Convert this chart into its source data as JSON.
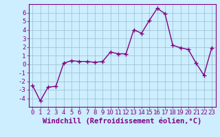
{
  "x": [
    0,
    1,
    2,
    3,
    4,
    5,
    6,
    7,
    8,
    9,
    10,
    11,
    12,
    13,
    14,
    15,
    16,
    17,
    18,
    19,
    20,
    21,
    22,
    23
  ],
  "y": [
    -2.5,
    -4.3,
    -2.7,
    -2.6,
    0.1,
    0.4,
    0.3,
    0.3,
    0.2,
    0.3,
    1.4,
    1.2,
    1.2,
    4.0,
    3.6,
    5.1,
    6.5,
    5.9,
    2.2,
    1.9,
    1.7,
    0.1,
    -1.3,
    1.9
  ],
  "line_color": "#800080",
  "marker": "+",
  "markersize": 4,
  "linewidth": 1.0,
  "markeredgewidth": 1.0,
  "xlabel": "Windchill (Refroidissement éolien,°C)",
  "xlabel_color": "#800080",
  "background_color": "#cceeff",
  "grid_color": "#99bbcc",
  "xlim": [
    -0.5,
    23.5
  ],
  "ylim": [
    -5,
    7
  ],
  "yticks": [
    -4,
    -3,
    -2,
    -1,
    0,
    1,
    2,
    3,
    4,
    5,
    6
  ],
  "xticks": [
    0,
    1,
    2,
    3,
    4,
    5,
    6,
    7,
    8,
    9,
    10,
    11,
    12,
    13,
    14,
    15,
    16,
    17,
    18,
    19,
    20,
    21,
    22,
    23
  ],
  "tick_label_fontsize": 6.5,
  "xlabel_fontsize": 7.5,
  "tick_color": "#800080",
  "axis_color": "#800080",
  "spine_color": "#800080"
}
